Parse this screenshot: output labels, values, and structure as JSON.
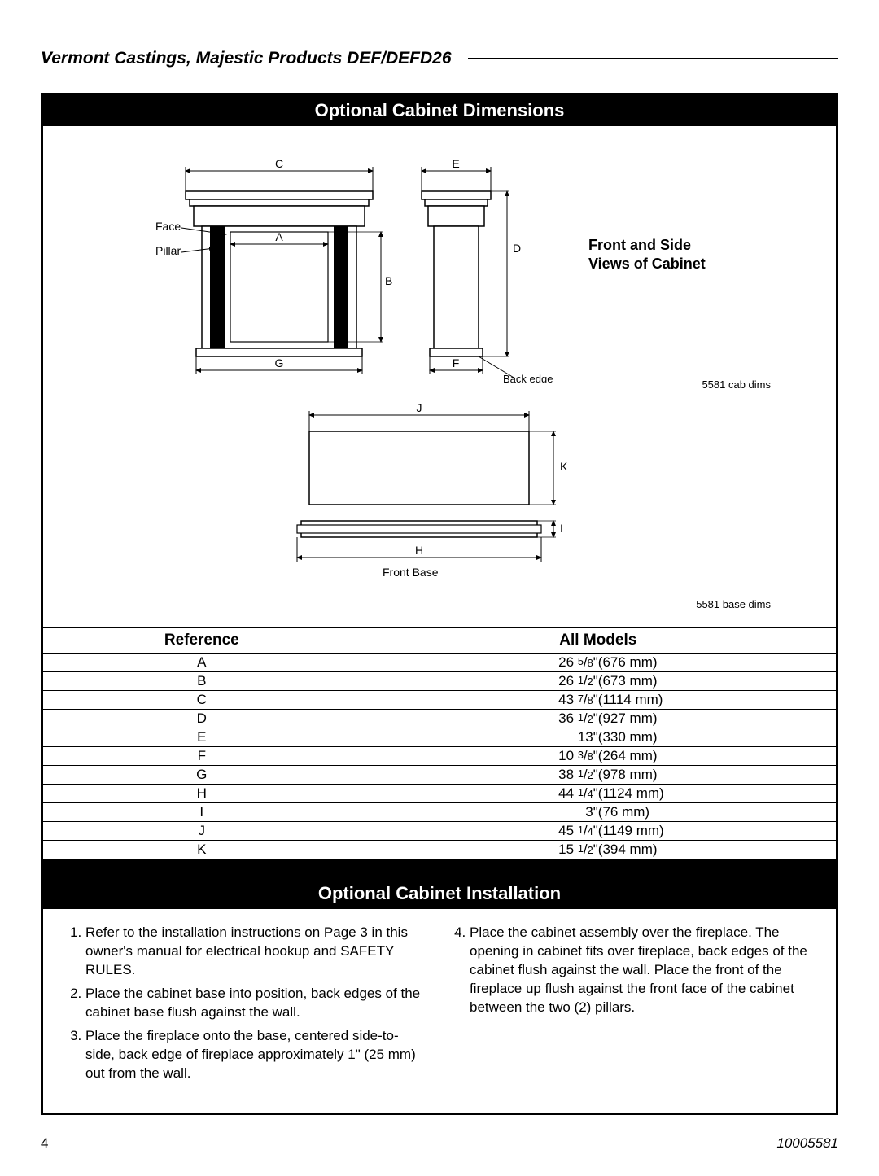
{
  "header": {
    "title": "Vermont Castings, Majestic Products DEF/DEFD26"
  },
  "sections": {
    "dimensions_title": "Optional Cabinet Dimensions",
    "installation_title": "Optional Cabinet Installation"
  },
  "views_label_l1": "Front and Side",
  "views_label_l2": "Views of Cabinet",
  "diagram_labels": {
    "face": "Face",
    "pillar": "Pillar",
    "back_edge": "Back edge",
    "front_base": "Front Base",
    "note_cab": "5581 cab dims",
    "note_base": "5581 base dims"
  },
  "dim_letters": {
    "A": "A",
    "B": "B",
    "C": "C",
    "D": "D",
    "E": "E",
    "F": "F",
    "G": "G",
    "H": "H",
    "I": "I",
    "J": "J",
    "K": "K"
  },
  "table": {
    "header_ref": "Reference",
    "header_models": "All Models",
    "rows": [
      {
        "ref": "A",
        "whole": "26",
        "num": "5",
        "den": "8",
        "mm": "(676 mm)"
      },
      {
        "ref": "B",
        "whole": "26",
        "num": "1",
        "den": "2",
        "mm": "(673 mm)"
      },
      {
        "ref": "C",
        "whole": "43",
        "num": "7",
        "den": "8",
        "mm": "(1114 mm)"
      },
      {
        "ref": "D",
        "whole": "36",
        "num": "1",
        "den": "2",
        "mm": "(927 mm)"
      },
      {
        "ref": "E",
        "whole": "13",
        "num": "",
        "den": "",
        "mm": "(330 mm)"
      },
      {
        "ref": "F",
        "whole": "10",
        "num": "3",
        "den": "8",
        "mm": "(264 mm)"
      },
      {
        "ref": "G",
        "whole": "38",
        "num": "1",
        "den": "2",
        "mm": "(978 mm)"
      },
      {
        "ref": "H",
        "whole": "44",
        "num": "1",
        "den": "4",
        "mm": "(1124 mm)"
      },
      {
        "ref": "I",
        "whole": "3",
        "num": "",
        "den": "",
        "mm": "(76 mm)"
      },
      {
        "ref": "J",
        "whole": "45",
        "num": "1",
        "den": "4",
        "mm": "(1149 mm)"
      },
      {
        "ref": "K",
        "whole": "15",
        "num": "1",
        "den": "2",
        "mm": "(394 mm)"
      }
    ]
  },
  "installation": {
    "left": [
      "Refer to the installation instructions on Page 3 in this owner's manual for electrical hookup and SAFETY RULES.",
      "Place the cabinet base into position, back edges of the cabinet base flush against the wall.",
      "Place the fireplace onto the base, centered side-to-side, back edge of fireplace approximately 1\" (25 mm) out from the wall."
    ],
    "right": [
      "Place the cabinet assembly over the fireplace. The opening in cabinet fits over fireplace, back edges of the cabinet flush against the wall. Place the front of the fireplace up flush against the front face of the cabinet between the two (2) pillars."
    ]
  },
  "footer": {
    "page": "4",
    "doc": "10005581"
  },
  "style": {
    "stroke": "#000000",
    "fill_light": "#ffffff",
    "font_label": 14
  }
}
